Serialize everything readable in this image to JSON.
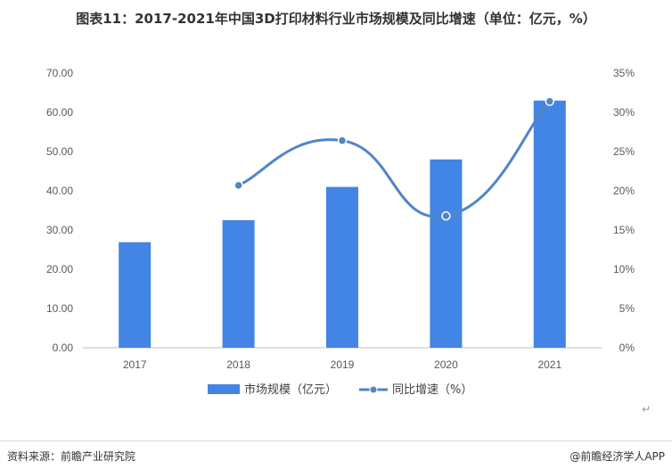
{
  "title": "图表11：2017-2021年中国3D打印材料行业市场规模及同比增速（单位：亿元，%）",
  "source": "资料来源：前瞻产业研究院",
  "brand": "@前瞻经济学人APP",
  "return_mark": "↵",
  "colors": {
    "bar": "#4285e4",
    "line": "#4f86c6",
    "axis": "#bfbfbf",
    "text": "#595959"
  },
  "chart_data": {
    "type": "bar",
    "categories": [
      "2017",
      "2018",
      "2019",
      "2020",
      "2021"
    ],
    "series": [
      {
        "name": "市场规模（亿元）",
        "type": "bar",
        "axis": "left",
        "values": [
          26.9,
          32.5,
          41.0,
          48.0,
          63.0
        ]
      },
      {
        "name": "同比增速（%）",
        "type": "line",
        "axis": "right",
        "values": [
          null,
          20.7,
          26.4,
          16.8,
          31.4
        ]
      }
    ],
    "y_left": {
      "min": 0,
      "max": 70,
      "step": 10,
      "tick_labels": [
        "0.00",
        "10.00",
        "20.00",
        "30.00",
        "40.00",
        "50.00",
        "60.00",
        "70.00"
      ]
    },
    "y_right": {
      "min": 0,
      "max": 35,
      "step": 5,
      "tick_labels": [
        "0%",
        "5%",
        "10%",
        "15%",
        "20%",
        "25%",
        "30%",
        "35%"
      ]
    },
    "grid": false,
    "legend": "bottom"
  }
}
